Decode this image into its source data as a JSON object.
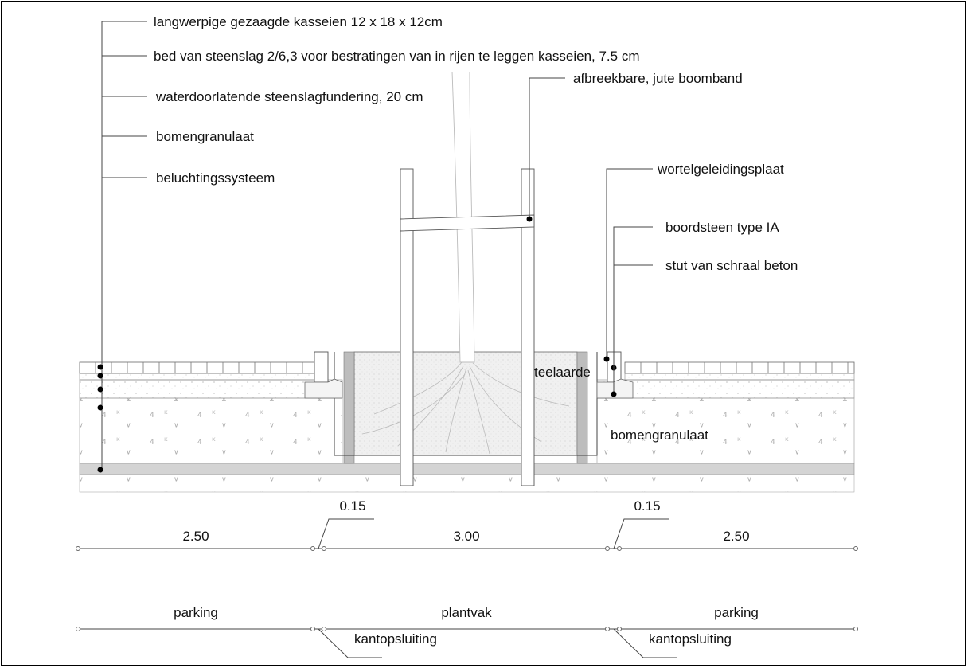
{
  "labels": {
    "kasseien": "langwerpige gezaagde kasseien 12 x 18 x 12cm",
    "bed": "bed van steenslag 2/6,3 voor bestratingen van in rijen te leggen kasseien, 7.5 cm",
    "fundering": "waterdoorlatende steenslagfundering, 20 cm",
    "bomengranulaat": "bomengranulaat",
    "beluchting": "beluchtingssysteem",
    "boomband": "afbreekbare, jute boomband",
    "wortelgeleiding": "wortelgeleidingsplaat",
    "boordsteen": "boordsteen type IA",
    "stut": "stut van schraal beton",
    "teelaarde": "teelaarde",
    "bomengranulaat_right": "bomengranulaat"
  },
  "dimensions": {
    "left_width": "2.50",
    "center_width": "3.00",
    "right_width": "2.50",
    "left_gap": "0.15",
    "right_gap": "0.15"
  },
  "zones": {
    "left": "parking",
    "center": "plantvak",
    "right": "parking",
    "edge_left": "kantopsluiting",
    "edge_right": "kantopsluiting"
  }
}
